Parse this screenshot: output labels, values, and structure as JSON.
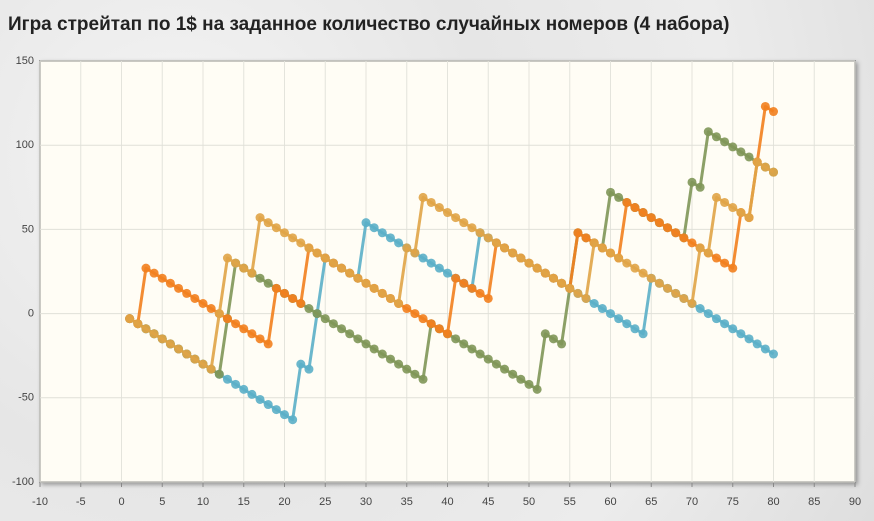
{
  "chart_data": {
    "type": "line",
    "title": "Игра стрейтап по 1$ на заданное количество случайных номеров (4 набора)",
    "x": [
      1,
      2,
      3,
      4,
      5,
      6,
      7,
      8,
      9,
      10,
      11,
      12,
      13,
      14,
      15,
      16,
      17,
      18,
      19,
      20,
      21,
      22,
      23,
      24,
      25,
      26,
      27,
      28,
      29,
      30,
      31,
      32,
      33,
      34,
      35,
      36,
      37,
      38,
      39,
      40,
      41,
      42,
      43,
      44,
      45,
      46,
      47,
      48,
      49,
      50,
      51,
      52,
      53,
      54,
      55,
      56,
      57,
      58,
      59,
      60,
      61,
      62,
      63,
      64,
      65,
      66,
      67,
      68,
      69,
      70,
      71,
      72,
      73,
      74,
      75,
      76,
      77,
      78,
      79,
      80
    ],
    "series": [
      {
        "color": "#5bafc8",
        "values": [
          -3,
          -6,
          -9,
          -12,
          -15,
          -18,
          -21,
          -24,
          -27,
          -30,
          -33,
          -36,
          -39,
          -42,
          -45,
          -48,
          -51,
          -54,
          -57,
          -60,
          -63,
          -30,
          -33,
          0,
          33,
          30,
          27,
          24,
          21,
          54,
          51,
          48,
          45,
          42,
          39,
          36,
          33,
          30,
          27,
          24,
          21,
          18,
          15,
          48,
          45,
          42,
          39,
          36,
          33,
          30,
          27,
          24,
          21,
          18,
          15,
          12,
          9,
          6,
          3,
          0,
          -3,
          -6,
          -9,
          -12,
          21,
          18,
          15,
          12,
          9,
          6,
          3,
          0,
          -3,
          -6,
          -9,
          -12,
          -15,
          -18,
          -21,
          -24
        ]
      },
      {
        "color": "#7f9658",
        "values": [
          -3,
          -6,
          -9,
          -12,
          -15,
          -18,
          -21,
          -24,
          -27,
          -30,
          -33,
          -36,
          -3,
          30,
          27,
          24,
          21,
          18,
          15,
          12,
          9,
          6,
          3,
          0,
          -3,
          -6,
          -9,
          -12,
          -15,
          -18,
          -21,
          -24,
          -27,
          -30,
          -33,
          -36,
          -39,
          -6,
          -9,
          -12,
          -15,
          -18,
          -21,
          -24,
          -27,
          -30,
          -33,
          -36,
          -39,
          -42,
          -45,
          -12,
          -15,
          -18,
          15,
          48,
          45,
          42,
          39,
          72,
          69,
          66,
          63,
          60,
          57,
          54,
          51,
          48,
          45,
          78,
          75,
          108,
          105,
          102,
          99,
          96,
          93,
          90,
          87,
          84
        ]
      },
      {
        "color": "#f27f1e",
        "values": [
          -3,
          -6,
          27,
          24,
          21,
          18,
          15,
          12,
          9,
          6,
          3,
          0,
          -3,
          -6,
          -9,
          -12,
          -15,
          -18,
          15,
          12,
          9,
          6,
          39,
          36,
          33,
          30,
          27,
          24,
          21,
          18,
          15,
          12,
          9,
          6,
          3,
          0,
          -3,
          -6,
          -9,
          -12,
          21,
          18,
          15,
          12,
          9,
          42,
          39,
          36,
          33,
          30,
          27,
          24,
          21,
          18,
          15,
          48,
          45,
          42,
          39,
          36,
          33,
          66,
          63,
          60,
          57,
          54,
          51,
          48,
          45,
          42,
          39,
          36,
          33,
          30,
          27,
          60,
          57,
          90,
          123,
          120
        ]
      },
      {
        "color": "#e0a447",
        "values": [
          -3,
          -6,
          -9,
          -12,
          -15,
          -18,
          -21,
          -24,
          -27,
          -30,
          -33,
          0,
          33,
          30,
          27,
          24,
          57,
          54,
          51,
          48,
          45,
          42,
          39,
          36,
          33,
          30,
          27,
          24,
          21,
          18,
          15,
          12,
          9,
          6,
          39,
          36,
          69,
          66,
          63,
          60,
          57,
          54,
          51,
          48,
          45,
          42,
          39,
          36,
          33,
          30,
          27,
          24,
          21,
          18,
          15,
          12,
          9,
          42,
          39,
          36,
          33,
          30,
          27,
          24,
          21,
          18,
          15,
          12,
          9,
          6,
          39,
          36,
          69,
          66,
          63,
          60,
          57,
          90,
          87,
          84
        ]
      }
    ],
    "xlim": [
      -10,
      90
    ],
    "xticks": [
      -10,
      -5,
      0,
      5,
      10,
      15,
      20,
      25,
      30,
      35,
      40,
      45,
      50,
      55,
      60,
      65,
      70,
      75,
      80,
      85,
      90
    ],
    "ylim": [
      -100,
      150
    ],
    "yticks": [
      -100,
      -50,
      0,
      50,
      100,
      150
    ],
    "grid": true
  }
}
